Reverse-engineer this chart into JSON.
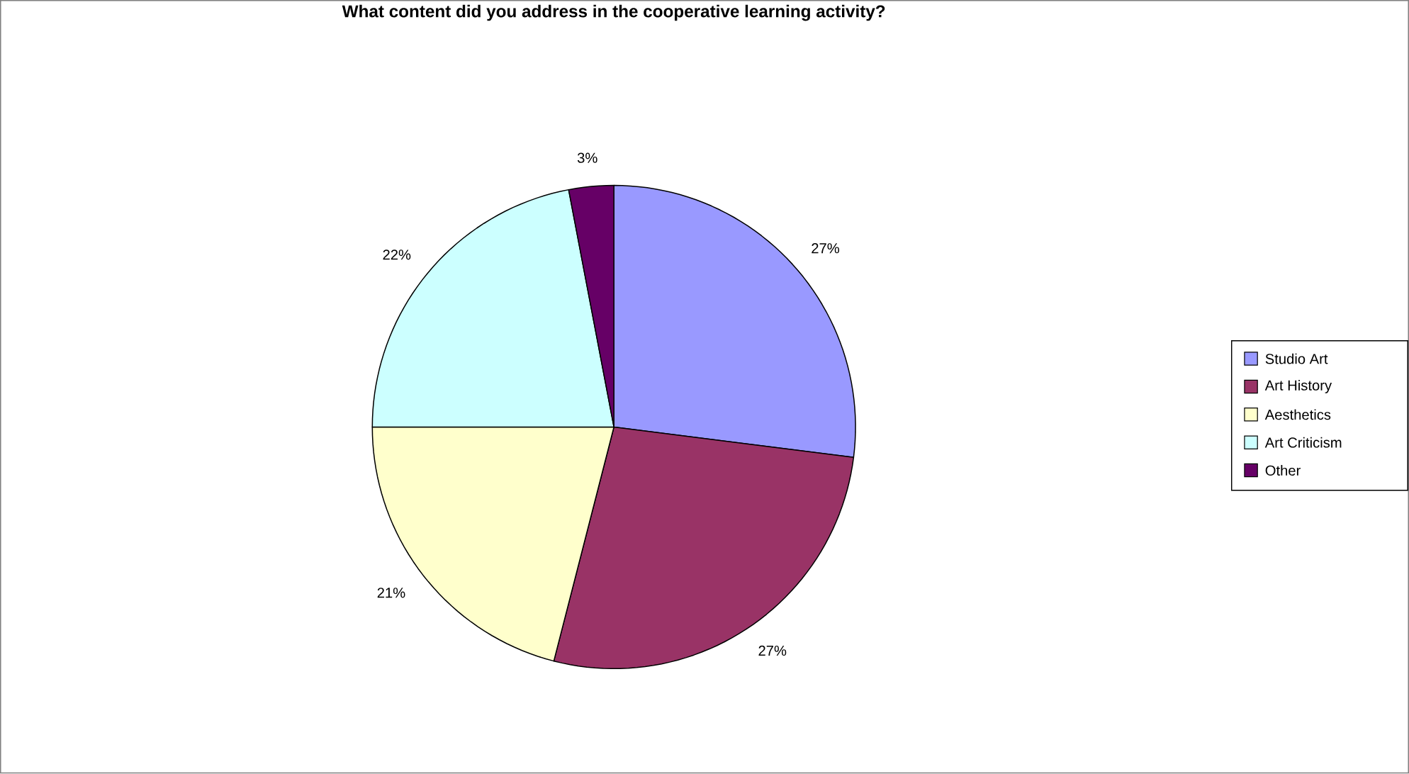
{
  "chart_data": {
    "type": "pie",
    "title": "What content did you address in the cooperative learning activity?",
    "categories": [
      "Studio Art",
      "Art History",
      "Aesthetics",
      "Art Criticism",
      "Other"
    ],
    "values": [
      27,
      27,
      21,
      22,
      3
    ],
    "value_labels": [
      "27%",
      "27%",
      "21%",
      "22%",
      "3%"
    ],
    "colors": [
      "#9999ff",
      "#993366",
      "#ffffcc",
      "#ccffff",
      "#660066"
    ],
    "legend": "right"
  }
}
